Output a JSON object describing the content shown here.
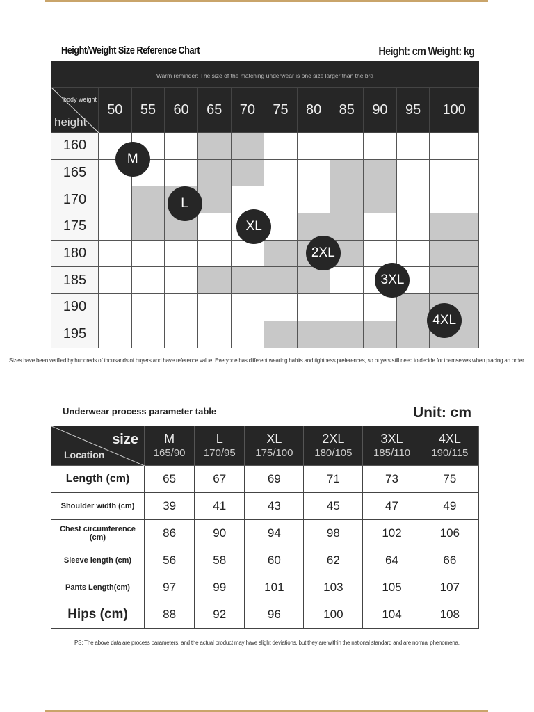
{
  "chart1": {
    "title": "Height/Weight Size Reference Chart",
    "units": "Height: cm Weight: kg",
    "reminder": "Warm reminder: The size of the matching underwear is one size larger than the bra",
    "corner_top": "body weight",
    "corner_bottom": "height",
    "weights": [
      "50",
      "55",
      "60",
      "65",
      "70",
      "75",
      "80",
      "85",
      "90",
      "95",
      "100"
    ],
    "heights": [
      "160",
      "165",
      "170",
      "175",
      "180",
      "185",
      "190",
      "195"
    ],
    "shaded": [
      [
        3,
        4
      ],
      [
        3,
        4,
        7,
        8
      ],
      [
        1,
        2,
        3,
        7,
        8
      ],
      [
        1,
        2,
        6,
        7,
        10
      ],
      [
        5,
        6,
        7,
        10
      ],
      [
        3,
        4,
        5,
        6,
        10
      ],
      [
        9,
        10
      ],
      [
        5,
        6,
        7,
        8,
        9,
        10
      ]
    ],
    "badges": [
      "M",
      "L",
      "XL",
      "2XL",
      "3XL",
      "4XL"
    ],
    "shade_color": "#c8c8c8"
  },
  "note1": "Sizes have been verified by hundreds of thousands of buyers and have reference value. Everyone has different wearing habits and tightness preferences, so buyers still need to decide for themselves when placing an order.",
  "table2": {
    "title": "Underwear process parameter table",
    "unit": "Unit: cm",
    "corner_top": "size",
    "corner_bottom": "Location",
    "sizes": [
      {
        "s": "M",
        "hw": "165/90"
      },
      {
        "s": "L",
        "hw": "170/95"
      },
      {
        "s": "XL",
        "hw": "175/100"
      },
      {
        "s": "2XL",
        "hw": "180/105"
      },
      {
        "s": "3XL",
        "hw": "185/110"
      },
      {
        "s": "4XL",
        "hw": "190/115"
      }
    ],
    "rows": [
      {
        "label": "Length (cm)",
        "values": [
          "65",
          "67",
          "69",
          "71",
          "73",
          "75"
        ]
      },
      {
        "label": "Shoulder width (cm)",
        "values": [
          "39",
          "41",
          "43",
          "45",
          "47",
          "49"
        ]
      },
      {
        "label": "Chest circumference (cm)",
        "values": [
          "86",
          "90",
          "94",
          "98",
          "102",
          "106"
        ]
      },
      {
        "label": "Sleeve length (cm)",
        "values": [
          "56",
          "58",
          "60",
          "62",
          "64",
          "66"
        ]
      },
      {
        "label": "Pants Length(cm)",
        "values": [
          "97",
          "99",
          "101",
          "103",
          "105",
          "107"
        ]
      },
      {
        "label": "Hips (cm)",
        "values": [
          "88",
          "92",
          "96",
          "100",
          "104",
          "108"
        ]
      }
    ]
  },
  "note2": "PS: The above data are process parameters, and the actual product may have slight deviations, but they are within the national standard and are normal phenomena.",
  "accent": "#c9a46a"
}
